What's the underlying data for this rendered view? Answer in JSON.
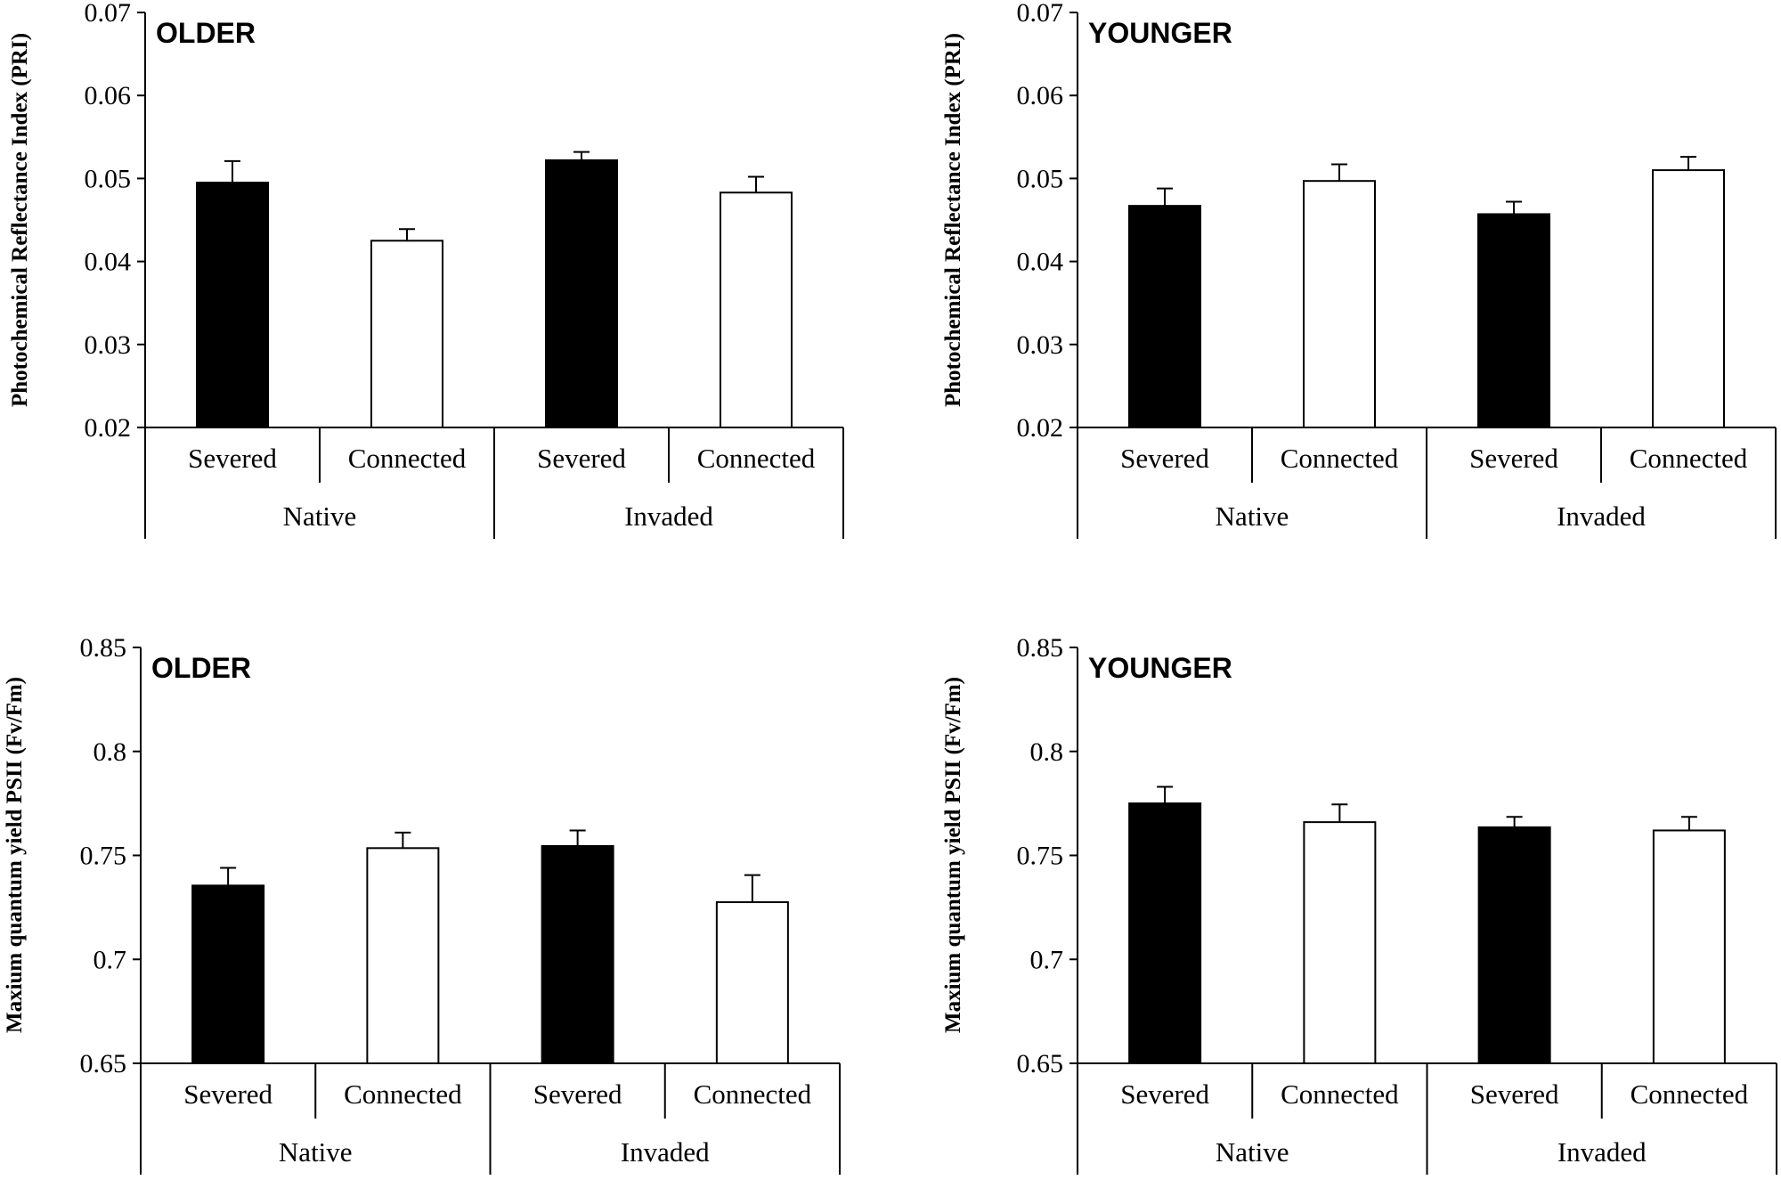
{
  "chart_data": [
    {
      "type": "bar",
      "title": "OLDER",
      "ylabel": "Photochemical Reflectance Index (PRI)",
      "ylim": [
        0.02,
        0.07
      ],
      "yticks": [
        "0.02",
        "0.03",
        "0.04",
        "0.05",
        "0.06",
        "0.07"
      ],
      "categories": [
        "Severed",
        "Connected",
        "Severed",
        "Connected"
      ],
      "groups": [
        "Native",
        "Invaded"
      ],
      "fills": [
        "#000000",
        "#ffffff",
        "#000000",
        "#ffffff"
      ],
      "values": [
        0.0495,
        0.0425,
        0.0522,
        0.0483
      ],
      "errors": [
        0.0026,
        0.0014,
        0.001,
        0.0019
      ]
    },
    {
      "type": "bar",
      "title": "YOUNGER",
      "ylabel": "Photochemical Reflectance Index (PRI)",
      "ylim": [
        0.02,
        0.07
      ],
      "yticks": [
        "0.02",
        "0.03",
        "0.04",
        "0.05",
        "0.06",
        "0.07"
      ],
      "categories": [
        "Severed",
        "Connected",
        "Severed",
        "Connected"
      ],
      "groups": [
        "Native",
        "Invaded"
      ],
      "fills": [
        "#000000",
        "#ffffff",
        "#000000",
        "#ffffff"
      ],
      "values": [
        0.0467,
        0.0497,
        0.0457,
        0.051
      ],
      "errors": [
        0.0021,
        0.002,
        0.0015,
        0.0016
      ]
    },
    {
      "type": "bar",
      "title": "OLDER",
      "ylabel": "Maxium quantum yield PSII (Fv/Fm)",
      "ylim": [
        0.65,
        0.85
      ],
      "yticks": [
        "0.65",
        "0.7",
        "0.75",
        "0.8",
        "0.85"
      ],
      "categories": [
        "Severed",
        "Connected",
        "Severed",
        "Connected"
      ],
      "groups": [
        "Native",
        "Invaded"
      ],
      "fills": [
        "#000000",
        "#ffffff",
        "#000000",
        "#ffffff"
      ],
      "values": [
        0.7355,
        0.7535,
        0.7545,
        0.7275
      ],
      "errors": [
        0.0085,
        0.0075,
        0.0075,
        0.013
      ]
    },
    {
      "type": "bar",
      "title": "YOUNGER",
      "ylabel": "Maxium quantum yield PSII (Fv/Fm)",
      "ylim": [
        0.65,
        0.85
      ],
      "yticks": [
        "0.65",
        "0.7",
        "0.75",
        "0.8",
        "0.85"
      ],
      "categories": [
        "Severed",
        "Connected",
        "Severed",
        "Connected"
      ],
      "groups": [
        "Native",
        "Invaded"
      ],
      "fills": [
        "#000000",
        "#ffffff",
        "#000000",
        "#ffffff"
      ],
      "values": [
        0.775,
        0.766,
        0.7635,
        0.762
      ],
      "errors": [
        0.008,
        0.0085,
        0.005,
        0.0065
      ]
    }
  ]
}
